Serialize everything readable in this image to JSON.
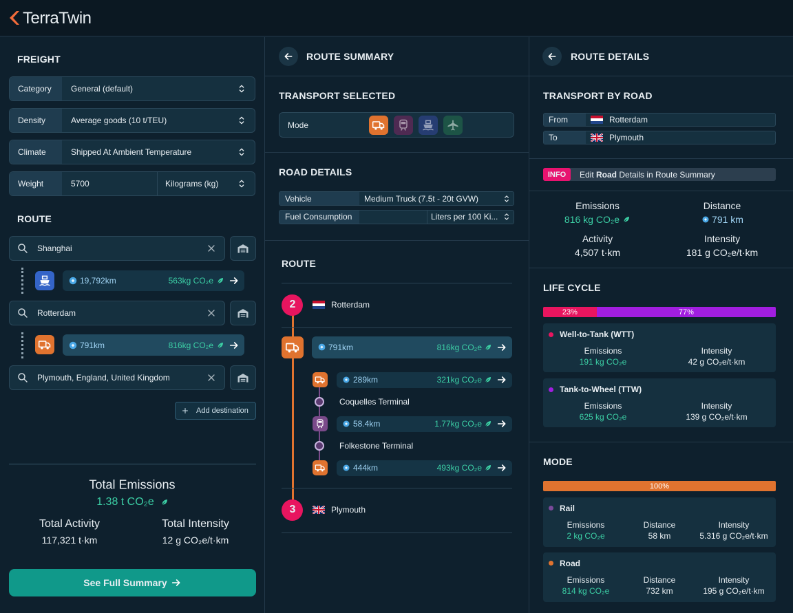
{
  "header": {
    "logo": "TerraTwin"
  },
  "freight": {
    "title": "FREIGHT",
    "fields": [
      {
        "label": "Category",
        "value": "General (default)"
      },
      {
        "label": "Density",
        "value": "Average goods (10 t/TEU)"
      },
      {
        "label": "Climate",
        "value": "Shipped At Ambient Temperature"
      },
      {
        "label": "Weight",
        "value": "5700",
        "unit": "Kilograms (kg)"
      }
    ]
  },
  "route": {
    "title": "ROUTE",
    "stops": [
      "Shanghai",
      "Rotterdam",
      "Plymouth, England, United Kingdom"
    ],
    "legs": [
      {
        "distance": "19,792km",
        "emissions": "563kg CO₂e"
      },
      {
        "distance": "791km",
        "emissions": "816kg CO₂e"
      }
    ],
    "add_destination": "Add destination"
  },
  "totals": {
    "emissions_label": "Total Emissions",
    "emissions": "1.38 t CO₂e",
    "activity_label": "Total Activity",
    "activity": "117,321 t·km",
    "intensity_label": "Total Intensity",
    "intensity": "12 g CO₂e/t·km"
  },
  "cta": "See Full Summary",
  "summary": {
    "title": "ROUTE SUMMARY",
    "transport_title": "TRANSPORT SELECTED",
    "mode_label": "Mode",
    "road_title": "ROAD DETAILS",
    "vehicle_label": "Vehicle",
    "vehicle": "Medium Truck (7.5t - 20t GVW)",
    "fuel_label": "Fuel Consumption",
    "fuel_unit": "Liters per 100 Ki...",
    "route_title": "ROUTE",
    "start": {
      "number": 2,
      "name": "Rotterdam"
    },
    "leg": {
      "distance": "791km",
      "emissions": "816kg CO₂e"
    },
    "segments": [
      {
        "distance": "289km",
        "emissions": "321kg CO₂e"
      },
      {
        "distance": "58.4km",
        "emissions": "1.77kg CO₂e"
      },
      {
        "distance": "444km",
        "emissions": "493kg CO₂e"
      }
    ],
    "terminals": [
      "Coquelles Terminal",
      "Folkestone Terminal"
    ],
    "end": {
      "number": 3,
      "name": "Plymouth"
    }
  },
  "details": {
    "title": "ROUTE DETAILS",
    "transport_title": "TRANSPORT BY ROAD",
    "from_label": "From",
    "from": "Rotterdam",
    "to_label": "To",
    "to": "Plymouth",
    "info": {
      "badge": "INFO",
      "prefix": "Edit ",
      "bold": "Road",
      "suffix": " Details in Route Summary"
    },
    "stats": [
      {
        "label": "Emissions",
        "value": "816 kg CO₂e"
      },
      {
        "label": "Distance",
        "value": "791 km"
      },
      {
        "label": "Activity",
        "value": "4,507 t·km"
      },
      {
        "label": "Intensity",
        "value": "181 g CO₂e/t·km"
      }
    ],
    "life_cycle": {
      "title": "LIFE CYCLE",
      "segments": [
        {
          "value": 23,
          "label": "23%",
          "color": "#e8155f"
        },
        {
          "value": 77,
          "label": "77%",
          "color": "#a11ee0"
        }
      ],
      "phases": [
        {
          "name": "Well-to-Tank (WTT)",
          "color": "#e8155f",
          "emissions_label": "Emissions",
          "emissions": "191 kg CO₂e",
          "intensity_label": "Intensity",
          "intensity": "42 g CO₂e/t·km"
        },
        {
          "name": "Tank-to-Wheel (TTW)",
          "color": "#a11ee0",
          "emissions_label": "Emissions",
          "emissions": "625 kg CO₂e",
          "intensity_label": "Intensity",
          "intensity": "139 g CO₂e/t·km"
        }
      ]
    },
    "mode": {
      "title": "MODE",
      "segments": [
        {
          "value": 100,
          "label": "100%",
          "color": "#e0732f"
        }
      ],
      "modes": [
        {
          "name": "Rail",
          "color": "#7a4a9a",
          "emissions_label": "Emissions",
          "emissions": "2 kg CO₂e",
          "distance_label": "Distance",
          "distance": "58 km",
          "intensity_label": "Intensity",
          "intensity": "5.316 g CO₂e/t·km"
        },
        {
          "name": "Road",
          "color": "#e0732f",
          "emissions_label": "Emissions",
          "emissions": "814 kg CO₂e",
          "distance_label": "Distance",
          "distance": "732 km",
          "intensity_label": "Intensity",
          "intensity": "195 g CO₂e/t·km"
        }
      ]
    }
  }
}
